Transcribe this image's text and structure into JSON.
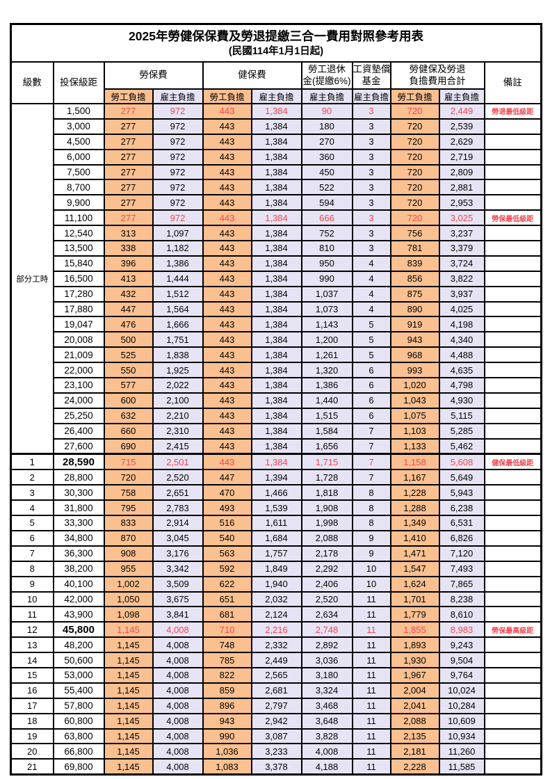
{
  "title": "2025年勞健保保費及勞退提繳三合一費用對照參考用表",
  "subtitle": "(民國114年1月1日起)",
  "colors": {
    "employee_bg": "#FAC090",
    "employer_bg": "#E6E4F4",
    "red_text": "#F5454F"
  },
  "header": {
    "level": "級數",
    "salary": "投保級距",
    "labor_ins": "勞保費",
    "health_ins": "健保費",
    "pension_line1": "勞工退休",
    "pension_line2": "金(提繳6%)",
    "wage_fund_line1": "工資墊償",
    "wage_fund_line2": "基金",
    "total_line1": "勞健保及勞退",
    "total_line2": "負擔費用合計",
    "remark": "備註",
    "employee": "勞工負擔",
    "employer": "雇主負擔"
  },
  "part_time_label": "部分工時",
  "part_time_rowspan": 23,
  "rows": [
    {
      "level": null,
      "salary": "1,500",
      "values": [
        "277",
        "972",
        "443",
        "1,384",
        "90",
        "3",
        "720",
        "2,449"
      ],
      "remark": "勞退最低級距",
      "red": true,
      "bold": false,
      "thick_top": false
    },
    {
      "level": null,
      "salary": "3,000",
      "values": [
        "277",
        "972",
        "443",
        "1,384",
        "180",
        "3",
        "720",
        "2,539"
      ],
      "remark": "",
      "red": false,
      "bold": false,
      "thick_top": false
    },
    {
      "level": null,
      "salary": "4,500",
      "values": [
        "277",
        "972",
        "443",
        "1,384",
        "270",
        "3",
        "720",
        "2,629"
      ],
      "remark": "",
      "red": false,
      "bold": false,
      "thick_top": false
    },
    {
      "level": null,
      "salary": "6,000",
      "values": [
        "277",
        "972",
        "443",
        "1,384",
        "360",
        "3",
        "720",
        "2,719"
      ],
      "remark": "",
      "red": false,
      "bold": false,
      "thick_top": false
    },
    {
      "level": null,
      "salary": "7,500",
      "values": [
        "277",
        "972",
        "443",
        "1,384",
        "450",
        "3",
        "720",
        "2,809"
      ],
      "remark": "",
      "red": false,
      "bold": false,
      "thick_top": false
    },
    {
      "level": null,
      "salary": "8,700",
      "values": [
        "277",
        "972",
        "443",
        "1,384",
        "522",
        "3",
        "720",
        "2,881"
      ],
      "remark": "",
      "red": false,
      "bold": false,
      "thick_top": false
    },
    {
      "level": null,
      "salary": "9,900",
      "values": [
        "277",
        "972",
        "443",
        "1,384",
        "594",
        "3",
        "720",
        "2,953"
      ],
      "remark": "",
      "red": false,
      "bold": false,
      "thick_top": false
    },
    {
      "level": null,
      "salary": "11,100",
      "values": [
        "277",
        "972",
        "443",
        "1,384",
        "666",
        "3",
        "720",
        "3,025"
      ],
      "remark": "勞保最低級距",
      "red": true,
      "bold": false,
      "thick_top": false
    },
    {
      "level": null,
      "salary": "12,540",
      "values": [
        "313",
        "1,097",
        "443",
        "1,384",
        "752",
        "3",
        "756",
        "3,237"
      ],
      "remark": "",
      "red": false,
      "bold": false,
      "thick_top": false
    },
    {
      "level": null,
      "salary": "13,500",
      "values": [
        "338",
        "1,182",
        "443",
        "1,384",
        "810",
        "3",
        "781",
        "3,379"
      ],
      "remark": "",
      "red": false,
      "bold": false,
      "thick_top": false
    },
    {
      "level": null,
      "salary": "15,840",
      "values": [
        "396",
        "1,386",
        "443",
        "1,384",
        "950",
        "4",
        "839",
        "3,724"
      ],
      "remark": "",
      "red": false,
      "bold": false,
      "thick_top": false
    },
    {
      "level": null,
      "salary": "16,500",
      "values": [
        "413",
        "1,444",
        "443",
        "1,384",
        "990",
        "4",
        "856",
        "3,822"
      ],
      "remark": "",
      "red": false,
      "bold": false,
      "thick_top": false
    },
    {
      "level": null,
      "salary": "17,280",
      "values": [
        "432",
        "1,512",
        "443",
        "1,384",
        "1,037",
        "4",
        "875",
        "3,937"
      ],
      "remark": "",
      "red": false,
      "bold": false,
      "thick_top": false
    },
    {
      "level": null,
      "salary": "17,880",
      "values": [
        "447",
        "1,564",
        "443",
        "1,384",
        "1,073",
        "4",
        "890",
        "4,025"
      ],
      "remark": "",
      "red": false,
      "bold": false,
      "thick_top": false
    },
    {
      "level": null,
      "salary": "19,047",
      "values": [
        "476",
        "1,666",
        "443",
        "1,384",
        "1,143",
        "5",
        "919",
        "4,198"
      ],
      "remark": "",
      "red": false,
      "bold": false,
      "thick_top": false
    },
    {
      "level": null,
      "salary": "20,008",
      "values": [
        "500",
        "1,751",
        "443",
        "1,384",
        "1,200",
        "5",
        "943",
        "4,340"
      ],
      "remark": "",
      "red": false,
      "bold": false,
      "thick_top": false
    },
    {
      "level": null,
      "salary": "21,009",
      "values": [
        "525",
        "1,838",
        "443",
        "1,384",
        "1,261",
        "5",
        "968",
        "4,488"
      ],
      "remark": "",
      "red": false,
      "bold": false,
      "thick_top": false
    },
    {
      "level": null,
      "salary": "22,000",
      "values": [
        "550",
        "1,925",
        "443",
        "1,384",
        "1,320",
        "6",
        "993",
        "4,635"
      ],
      "remark": "",
      "red": false,
      "bold": false,
      "thick_top": false
    },
    {
      "level": null,
      "salary": "23,100",
      "values": [
        "577",
        "2,022",
        "443",
        "1,384",
        "1,386",
        "6",
        "1,020",
        "4,798"
      ],
      "remark": "",
      "red": false,
      "bold": false,
      "thick_top": false
    },
    {
      "level": null,
      "salary": "24,000",
      "values": [
        "600",
        "2,100",
        "443",
        "1,384",
        "1,440",
        "6",
        "1,043",
        "4,930"
      ],
      "remark": "",
      "red": false,
      "bold": false,
      "thick_top": false
    },
    {
      "level": null,
      "salary": "25,250",
      "values": [
        "632",
        "2,210",
        "443",
        "1,384",
        "1,515",
        "6",
        "1,075",
        "5,115"
      ],
      "remark": "",
      "red": false,
      "bold": false,
      "thick_top": false
    },
    {
      "level": null,
      "salary": "26,400",
      "values": [
        "660",
        "2,310",
        "443",
        "1,384",
        "1,584",
        "7",
        "1,103",
        "5,285"
      ],
      "remark": "",
      "red": false,
      "bold": false,
      "thick_top": false
    },
    {
      "level": null,
      "salary": "27,600",
      "values": [
        "690",
        "2,415",
        "443",
        "1,384",
        "1,656",
        "7",
        "1,133",
        "5,462"
      ],
      "remark": "",
      "red": false,
      "bold": false,
      "thick_top": false
    },
    {
      "level": "1",
      "salary": "28,590",
      "values": [
        "715",
        "2,501",
        "443",
        "1,384",
        "1,715",
        "7",
        "1,158",
        "5,608"
      ],
      "remark": "健保最低級距",
      "red": true,
      "bold": true,
      "thick_top": true
    },
    {
      "level": "2",
      "salary": "28,800",
      "values": [
        "720",
        "2,520",
        "447",
        "1,394",
        "1,728",
        "7",
        "1,167",
        "5,649"
      ],
      "remark": "",
      "red": false,
      "bold": false,
      "thick_top": false
    },
    {
      "level": "3",
      "salary": "30,300",
      "values": [
        "758",
        "2,651",
        "470",
        "1,466",
        "1,818",
        "8",
        "1,228",
        "5,943"
      ],
      "remark": "",
      "red": false,
      "bold": false,
      "thick_top": false
    },
    {
      "level": "4",
      "salary": "31,800",
      "values": [
        "795",
        "2,783",
        "493",
        "1,539",
        "1,908",
        "8",
        "1,288",
        "6,238"
      ],
      "remark": "",
      "red": false,
      "bold": false,
      "thick_top": false
    },
    {
      "level": "5",
      "salary": "33,300",
      "values": [
        "833",
        "2,914",
        "516",
        "1,611",
        "1,998",
        "8",
        "1,349",
        "6,531"
      ],
      "remark": "",
      "red": false,
      "bold": false,
      "thick_top": false
    },
    {
      "level": "6",
      "salary": "34,800",
      "values": [
        "870",
        "3,045",
        "540",
        "1,684",
        "2,088",
        "9",
        "1,410",
        "6,826"
      ],
      "remark": "",
      "red": false,
      "bold": false,
      "thick_top": false
    },
    {
      "level": "7",
      "salary": "36,300",
      "values": [
        "908",
        "3,176",
        "563",
        "1,757",
        "2,178",
        "9",
        "1,471",
        "7,120"
      ],
      "remark": "",
      "red": false,
      "bold": false,
      "thick_top": false
    },
    {
      "level": "8",
      "salary": "38,200",
      "values": [
        "955",
        "3,342",
        "592",
        "1,849",
        "2,292",
        "10",
        "1,547",
        "7,493"
      ],
      "remark": "",
      "red": false,
      "bold": false,
      "thick_top": false
    },
    {
      "level": "9",
      "salary": "40,100",
      "values": [
        "1,002",
        "3,509",
        "622",
        "1,940",
        "2,406",
        "10",
        "1,624",
        "7,865"
      ],
      "remark": "",
      "red": false,
      "bold": false,
      "thick_top": false
    },
    {
      "level": "10",
      "salary": "42,000",
      "values": [
        "1,050",
        "3,675",
        "651",
        "2,032",
        "2,520",
        "11",
        "1,701",
        "8,238"
      ],
      "remark": "",
      "red": false,
      "bold": false,
      "thick_top": false
    },
    {
      "level": "11",
      "salary": "43,900",
      "values": [
        "1,098",
        "3,841",
        "681",
        "2,124",
        "2,634",
        "11",
        "1,779",
        "8,610"
      ],
      "remark": "",
      "red": false,
      "bold": false,
      "thick_top": false
    },
    {
      "level": "12",
      "salary": "45,800",
      "values": [
        "1,145",
        "4,008",
        "710",
        "2,216",
        "2,748",
        "11",
        "1,855",
        "8,983"
      ],
      "remark": "勞保最高級距",
      "red": true,
      "bold": true,
      "thick_top": false
    },
    {
      "level": "13",
      "salary": "48,200",
      "values": [
        "1,145",
        "4,008",
        "748",
        "2,332",
        "2,892",
        "11",
        "1,893",
        "9,243"
      ],
      "remark": "",
      "red": false,
      "bold": false,
      "thick_top": false
    },
    {
      "level": "14",
      "salary": "50,600",
      "values": [
        "1,145",
        "4,008",
        "785",
        "2,449",
        "3,036",
        "11",
        "1,930",
        "9,504"
      ],
      "remark": "",
      "red": false,
      "bold": false,
      "thick_top": false
    },
    {
      "level": "15",
      "salary": "53,000",
      "values": [
        "1,145",
        "4,008",
        "822",
        "2,565",
        "3,180",
        "11",
        "1,967",
        "9,764"
      ],
      "remark": "",
      "red": false,
      "bold": false,
      "thick_top": false
    },
    {
      "level": "16",
      "salary": "55,400",
      "values": [
        "1,145",
        "4,008",
        "859",
        "2,681",
        "3,324",
        "11",
        "2,004",
        "10,024"
      ],
      "remark": "",
      "red": false,
      "bold": false,
      "thick_top": false
    },
    {
      "level": "17",
      "salary": "57,800",
      "values": [
        "1,145",
        "4,008",
        "896",
        "2,797",
        "3,468",
        "11",
        "2,041",
        "10,284"
      ],
      "remark": "",
      "red": false,
      "bold": false,
      "thick_top": false
    },
    {
      "level": "18",
      "salary": "60,800",
      "values": [
        "1,145",
        "4,008",
        "943",
        "2,942",
        "3,648",
        "11",
        "2,088",
        "10,609"
      ],
      "remark": "",
      "red": false,
      "bold": false,
      "thick_top": false
    },
    {
      "level": "19",
      "salary": "63,800",
      "values": [
        "1,145",
        "4,008",
        "990",
        "3,087",
        "3,828",
        "11",
        "2,135",
        "10,934"
      ],
      "remark": "",
      "red": false,
      "bold": false,
      "thick_top": false
    },
    {
      "level": "20",
      "salary": "66,800",
      "values": [
        "1,145",
        "4,008",
        "1,036",
        "3,233",
        "4,008",
        "11",
        "2,181",
        "11,260"
      ],
      "remark": "",
      "red": false,
      "bold": false,
      "thick_top": false
    },
    {
      "level": "21",
      "salary": "69,800",
      "values": [
        "1,145",
        "4,008",
        "1,083",
        "3,378",
        "4,188",
        "11",
        "2,228",
        "11,585"
      ],
      "remark": "",
      "red": false,
      "bold": false,
      "thick_top": false
    }
  ]
}
